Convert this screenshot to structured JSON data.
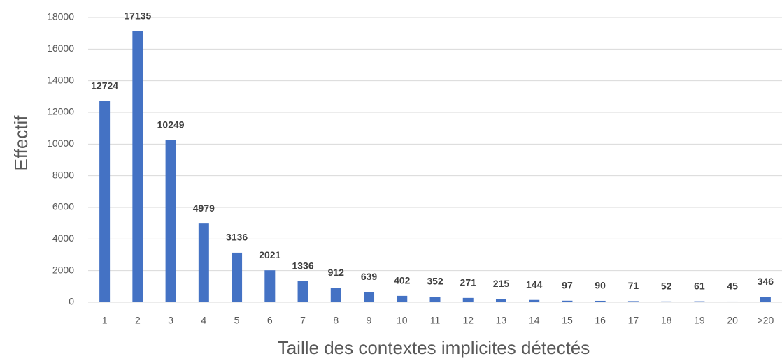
{
  "chart_data": {
    "type": "bar",
    "xlabel": "Taille des contextes implicites détectés",
    "ylabel": "Effectif",
    "categories": [
      "1",
      "2",
      "3",
      "4",
      "5",
      "6",
      "7",
      "8",
      "9",
      "10",
      "11",
      "12",
      "13",
      "14",
      "15",
      "16",
      "17",
      "18",
      "19",
      "20",
      ">20"
    ],
    "values": [
      12724,
      17135,
      10249,
      4979,
      3136,
      2021,
      1336,
      912,
      639,
      402,
      352,
      271,
      215,
      144,
      97,
      90,
      71,
      52,
      61,
      45,
      346
    ],
    "color": "#4472c4",
    "ylim": [
      0,
      18000
    ],
    "yticks": [
      0,
      2000,
      4000,
      6000,
      8000,
      10000,
      12000,
      14000,
      16000,
      18000
    ],
    "grid": true,
    "data_labels": true
  }
}
